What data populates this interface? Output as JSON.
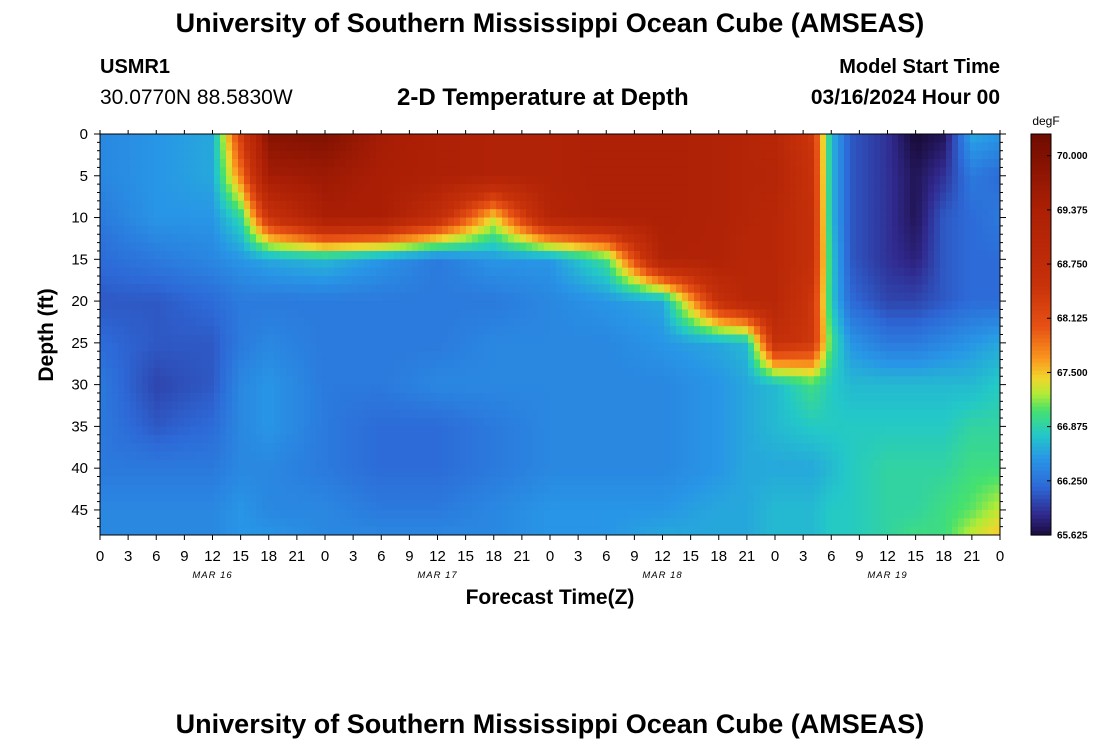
{
  "header": {
    "title": "University of Southern Mississippi Ocean Cube (AMSEAS)",
    "station_id": "USMR1",
    "station_location": "30.0770N  88.5830W",
    "subtitle": "2-D Temperature at Depth",
    "model_start_label": "Model Start Time",
    "model_start_value": "03/16/2024 Hour 00"
  },
  "footer": {
    "title": "University of Southern Mississippi Ocean Cube (AMSEAS)"
  },
  "chart_data": {
    "type": "heatmap",
    "title": "2-D Temperature at Depth",
    "xlabel": "Forecast Time(Z)",
    "ylabel": "Depth (ft)",
    "x_hours_range": [
      0,
      96
    ],
    "y_range": [
      0,
      48
    ],
    "y_inverted": true,
    "x_tick_hours": [
      0,
      3,
      6,
      9,
      12,
      15,
      18,
      21,
      24,
      27,
      30,
      33,
      36,
      39,
      42,
      45,
      48,
      51,
      54,
      57,
      60,
      63,
      66,
      69,
      72,
      75,
      78,
      81,
      84,
      87,
      90,
      93,
      96
    ],
    "x_tick_labels": [
      "0",
      "3",
      "6",
      "9",
      "12",
      "15",
      "18",
      "21",
      "0",
      "3",
      "6",
      "9",
      "12",
      "15",
      "18",
      "21",
      "0",
      "3",
      "6",
      "9",
      "12",
      "15",
      "18",
      "21",
      "0",
      "3",
      "6",
      "9",
      "12",
      "15",
      "18",
      "21",
      "0"
    ],
    "day_labels": [
      {
        "hour": 12,
        "label": "MAR 16"
      },
      {
        "hour": 36,
        "label": "MAR 17"
      },
      {
        "hour": 60,
        "label": "MAR 18"
      },
      {
        "hour": 84,
        "label": "MAR 19"
      }
    ],
    "y_ticks": [
      0,
      5,
      10,
      15,
      20,
      25,
      30,
      35,
      40,
      45
    ],
    "y_tick_labels": [
      "0",
      "5",
      "10",
      "15",
      "20",
      "25",
      "30",
      "35",
      "40",
      "45"
    ],
    "colorbar": {
      "unit": "degF",
      "min": 65.625,
      "max": 70.25,
      "ticks": [
        70.0,
        69.375,
        68.75,
        68.125,
        67.5,
        66.875,
        66.25,
        65.625
      ],
      "tick_labels": [
        "70.000",
        "69.375",
        "68.750",
        "68.125",
        "67.500",
        "66.875",
        "66.250",
        "65.625"
      ]
    },
    "hours": [
      0,
      6,
      12,
      15,
      18,
      24,
      30,
      36,
      42,
      48,
      54,
      60,
      66,
      69,
      72,
      76,
      78,
      80,
      84,
      87,
      90,
      93,
      96
    ],
    "depths": [
      0,
      5,
      10,
      15,
      20,
      25,
      30,
      35,
      40,
      45,
      48
    ],
    "temperature_degF": [
      [
        66.4,
        66.5,
        66.6,
        68.3,
        69.9,
        70.0,
        69.5,
        69.3,
        69.2,
        69.2,
        69.3,
        69.3,
        69.2,
        69.1,
        69.0,
        68.4,
        66.7,
        66.1,
        65.9,
        65.6,
        65.7,
        66.6,
        66.5
      ],
      [
        66.4,
        66.5,
        66.6,
        67.8,
        69.5,
        69.6,
        69.4,
        69.3,
        69.2,
        69.2,
        69.3,
        69.3,
        69.2,
        69.1,
        69.1,
        68.5,
        66.7,
        66.1,
        65.9,
        65.7,
        65.9,
        66.3,
        66.2
      ],
      [
        66.3,
        66.5,
        66.5,
        66.9,
        68.5,
        69.4,
        69.4,
        68.7,
        67.4,
        69.1,
        69.3,
        69.3,
        69.2,
        69.1,
        69.0,
        68.6,
        66.7,
        66.1,
        65.9,
        65.7,
        66.1,
        66.2,
        66.3
      ],
      [
        66.2,
        66.3,
        66.4,
        66.5,
        66.6,
        66.7,
        66.5,
        66.3,
        66.5,
        66.5,
        67.0,
        69.2,
        69.2,
        69.0,
        69.0,
        68.6,
        66.8,
        66.1,
        65.9,
        65.8,
        66.1,
        66.2,
        66.2
      ],
      [
        66.1,
        66.1,
        66.2,
        66.3,
        66.3,
        66.3,
        66.3,
        66.3,
        66.3,
        66.4,
        66.5,
        66.6,
        68.6,
        69.0,
        69.0,
        68.4,
        66.8,
        66.2,
        66.0,
        66.0,
        66.1,
        66.2,
        66.2
      ],
      [
        66.2,
        66.1,
        66.1,
        66.3,
        66.4,
        66.3,
        66.3,
        66.3,
        66.4,
        66.4,
        66.4,
        66.5,
        66.6,
        66.7,
        68.6,
        68.4,
        67.0,
        66.5,
        66.3,
        66.3,
        66.4,
        66.5,
        66.6
      ],
      [
        66.3,
        66.0,
        66.1,
        66.4,
        66.5,
        66.3,
        66.3,
        66.4,
        66.4,
        66.4,
        66.4,
        66.4,
        66.5,
        66.6,
        66.7,
        67.0,
        66.8,
        66.7,
        66.7,
        66.7,
        66.7,
        66.7,
        66.8
      ],
      [
        66.3,
        66.1,
        66.2,
        66.4,
        66.5,
        66.3,
        66.2,
        66.2,
        66.3,
        66.4,
        66.4,
        66.4,
        66.5,
        66.6,
        66.7,
        66.8,
        66.8,
        66.8,
        66.8,
        66.8,
        66.8,
        66.9,
        66.9
      ],
      [
        66.3,
        66.3,
        66.3,
        66.4,
        66.4,
        66.3,
        66.2,
        66.2,
        66.3,
        66.4,
        66.4,
        66.4,
        66.5,
        66.6,
        66.6,
        66.6,
        66.7,
        66.8,
        66.9,
        66.9,
        66.9,
        67.0,
        67.0
      ],
      [
        66.4,
        66.4,
        66.4,
        66.5,
        66.4,
        66.4,
        66.3,
        66.3,
        66.4,
        66.5,
        66.5,
        66.5,
        66.6,
        66.6,
        66.7,
        66.7,
        66.8,
        66.8,
        66.9,
        66.9,
        67.0,
        67.1,
        67.3
      ],
      [
        66.4,
        66.4,
        66.4,
        66.5,
        66.5,
        66.4,
        66.4,
        66.4,
        66.4,
        66.5,
        66.5,
        66.6,
        66.6,
        66.6,
        66.7,
        66.7,
        66.8,
        66.8,
        66.9,
        67.0,
        67.0,
        67.3,
        67.5
      ]
    ]
  }
}
